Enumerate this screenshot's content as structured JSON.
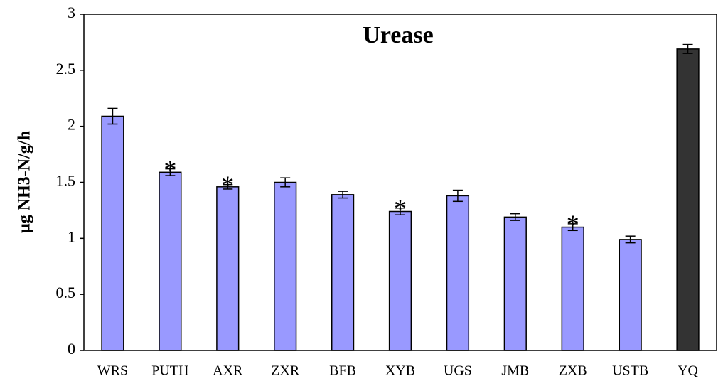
{
  "chart_data": {
    "type": "bar",
    "title": "Urease",
    "y_label": "μg NH3-N/g/h",
    "categories": [
      "WRS",
      "PUTH",
      "AXR",
      "ZXR",
      "BFB",
      "XYB",
      "UGS",
      "JMB",
      "ZXB",
      "USTB",
      "YQ"
    ],
    "values": [
      2.09,
      1.59,
      1.46,
      1.5,
      1.39,
      1.24,
      1.38,
      1.19,
      1.1,
      0.99,
      2.69
    ],
    "errors": [
      0.07,
      0.03,
      0.02,
      0.04,
      0.03,
      0.03,
      0.05,
      0.03,
      0.03,
      0.03,
      0.04
    ],
    "significance": [
      null,
      "*",
      "*",
      null,
      null,
      "*",
      null,
      null,
      "*",
      null,
      null
    ],
    "colors": [
      "#9999ff",
      "#9999ff",
      "#9999ff",
      "#9999ff",
      "#9999ff",
      "#9999ff",
      "#9999ff",
      "#9999ff",
      "#9999ff",
      "#9999ff",
      "#333333"
    ],
    "ylim": [
      0,
      3
    ],
    "yticks": [
      0,
      0.5,
      1,
      1.5,
      2,
      2.5,
      3
    ],
    "grid": false
  }
}
